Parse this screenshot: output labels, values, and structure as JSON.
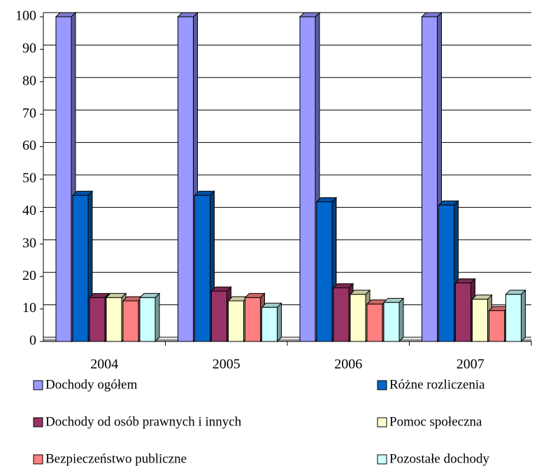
{
  "chart_data": {
    "type": "bar",
    "categories": [
      "2004",
      "2005",
      "2006",
      "2007"
    ],
    "series": [
      {
        "name": "Dochody ogółem",
        "color": "#9999ff",
        "values": [
          100,
          100,
          100,
          100
        ]
      },
      {
        "name": "Różne rozliczenia",
        "color": "#0066cc",
        "values": [
          45,
          45,
          43,
          42
        ]
      },
      {
        "name": "Dochody od osób prawnych i innych",
        "color": "#993366",
        "values": [
          13.5,
          15.5,
          16.5,
          18
        ]
      },
      {
        "name": "Pomoc społeczna",
        "color": "#ffffcc",
        "values": [
          13.5,
          12.5,
          14.5,
          13
        ]
      },
      {
        "name": "Bezpieczeństwo publiczne",
        "color": "#ff8080",
        "values": [
          12.5,
          13.5,
          11.5,
          9.5
        ]
      },
      {
        "name": "Pozostałe dochody",
        "color": "#ccffff",
        "values": [
          13.5,
          10.5,
          12,
          14.5
        ]
      }
    ],
    "ylim": [
      0,
      100
    ],
    "yticks": [
      0,
      10,
      20,
      30,
      40,
      50,
      60,
      70,
      80,
      90,
      100
    ],
    "grid": true
  }
}
